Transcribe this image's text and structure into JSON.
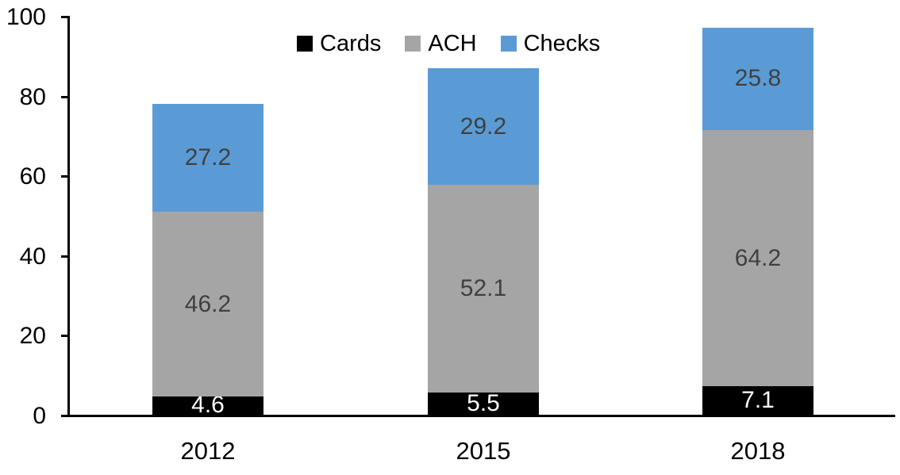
{
  "chart_data": {
    "type": "bar",
    "stacked": true,
    "title": "",
    "categories": [
      "2012",
      "2015",
      "2018"
    ],
    "series": [
      {
        "name": "Cards",
        "color": "#000000",
        "label_color": "#ffffff",
        "values": [
          4.6,
          5.5,
          7.1
        ]
      },
      {
        "name": "ACH",
        "color": "#a5a5a5",
        "label_color": "#404040",
        "values": [
          46.2,
          52.1,
          64.2
        ]
      },
      {
        "name": "Checks",
        "color": "#5b9bd5",
        "label_color": "#404040",
        "values": [
          27.2,
          29.2,
          25.8
        ]
      }
    ],
    "totals": [
      78.0,
      86.8,
      97.1
    ],
    "y_ticks": [
      0,
      20,
      40,
      60,
      80,
      100
    ],
    "ylim": [
      0,
      100
    ],
    "xlabel": "",
    "ylabel": "",
    "grid": false,
    "legend_position": "top-center",
    "axis_color": "#000000",
    "value_label_decimals": 1
  }
}
